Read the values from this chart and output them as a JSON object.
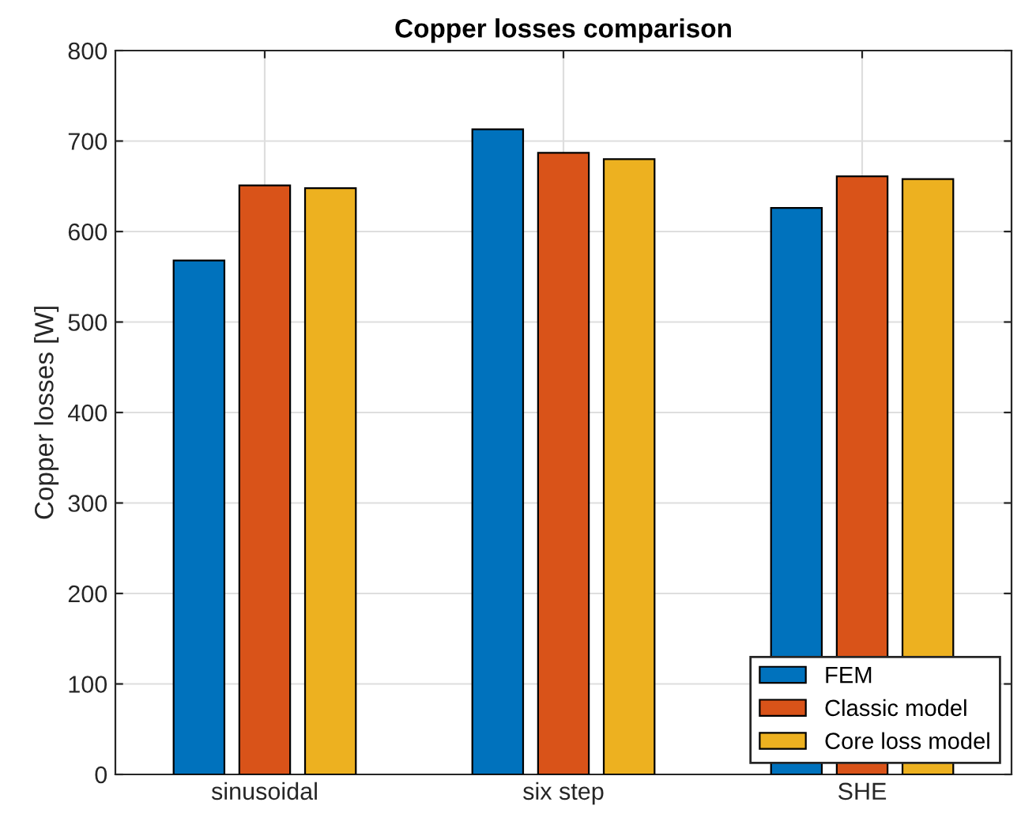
{
  "chart_data": {
    "type": "bar",
    "title": "Copper losses comparison",
    "ylabel": "Copper losses [W]",
    "categories": [
      "sinusoidal",
      "six step",
      "SHE"
    ],
    "series": [
      {
        "name": "FEM",
        "color": "#0072bd",
        "values": [
          568,
          713,
          626
        ]
      },
      {
        "name": "Classic model",
        "color": "#d95319",
        "values": [
          651,
          687,
          661
        ]
      },
      {
        "name": "Core loss model",
        "color": "#edb120",
        "values": [
          648,
          680,
          658
        ]
      }
    ],
    "ylim": [
      0,
      800
    ],
    "yticks": [
      0,
      100,
      200,
      300,
      400,
      500,
      600,
      700,
      800
    ],
    "grid": true,
    "legend": "bottom right"
  }
}
